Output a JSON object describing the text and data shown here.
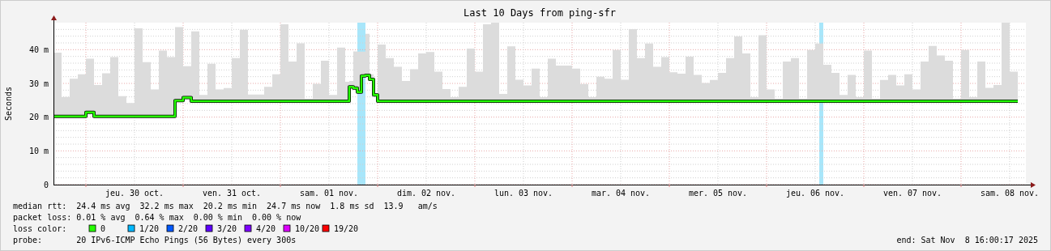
{
  "chart_data": {
    "type": "step",
    "title": "Last 10 Days from ping-sfr",
    "ylabel": "Seconds",
    "legend_title": "loss color:",
    "legend": "bottom left",
    "grid": true,
    "xlim": [
      "2025-10-29T16:00",
      "2025-11-08T16:00"
    ],
    "xticks": [
      {
        "value": "2025-10-30T00:00",
        "label": null
      },
      {
        "value": "2025-10-30T12:00",
        "label": "jeu. 30 oct."
      },
      {
        "value": "2025-10-31T00:00",
        "label": null
      },
      {
        "value": "2025-10-31T12:00",
        "label": "ven. 31 oct."
      },
      {
        "value": "2025-11-01T00:00",
        "label": null
      },
      {
        "value": "2025-11-01T12:00",
        "label": "sam. 01 nov."
      },
      {
        "value": "2025-11-02T00:00",
        "label": null
      },
      {
        "value": "2025-11-02T12:00",
        "label": "dim. 02 nov."
      },
      {
        "value": "2025-11-03T00:00",
        "label": null
      },
      {
        "value": "2025-11-03T12:00",
        "label": "lun. 03 nov."
      },
      {
        "value": "2025-11-04T00:00",
        "label": null
      },
      {
        "value": "2025-11-04T12:00",
        "label": "mar. 04 nov."
      },
      {
        "value": "2025-11-05T00:00",
        "label": null
      },
      {
        "value": "2025-11-05T12:00",
        "label": "mer. 05 nov."
      },
      {
        "value": "2025-11-06T00:00",
        "label": null
      },
      {
        "value": "2025-11-06T12:00",
        "label": "jeu. 06 nov."
      },
      {
        "value": "2025-11-07T00:00",
        "label": null
      },
      {
        "value": "2025-11-07T12:00",
        "label": "ven. 07 nov."
      },
      {
        "value": "2025-11-08T00:00",
        "label": null
      },
      {
        "value": "2025-11-08T12:00",
        "label": "sam. 08 nov."
      }
    ],
    "ylim": [
      0,
      48
    ],
    "yticks": [
      {
        "value": 0,
        "label": "0"
      },
      {
        "value": 2,
        "label": null
      },
      {
        "value": 4,
        "label": null
      },
      {
        "value": 6,
        "label": null
      },
      {
        "value": 8,
        "label": null
      },
      {
        "value": 10,
        "label": "10 m"
      },
      {
        "value": 12,
        "label": null
      },
      {
        "value": 14,
        "label": null
      },
      {
        "value": 16,
        "label": null
      },
      {
        "value": 18,
        "label": null
      },
      {
        "value": 20,
        "label": "20 m"
      },
      {
        "value": 22,
        "label": null
      },
      {
        "value": 24,
        "label": null
      },
      {
        "value": 26,
        "label": null
      },
      {
        "value": 28,
        "label": null
      },
      {
        "value": 30,
        "label": "30 m"
      },
      {
        "value": 32,
        "label": null
      },
      {
        "value": 34,
        "label": null
      },
      {
        "value": 36,
        "label": null
      },
      {
        "value": 38,
        "label": null
      },
      {
        "value": 40,
        "label": "40 m"
      },
      {
        "value": 42,
        "label": null
      },
      {
        "value": 44,
        "label": null
      },
      {
        "value": 46,
        "label": null
      }
    ],
    "bands": [
      {
        "axis": "x",
        "from": "2025-11-01T19:00",
        "to": "2025-11-01T21:00",
        "color": "#a8e6fa"
      },
      {
        "axis": "x",
        "from": "2025-11-06T13:00",
        "to": "2025-11-06T14:00",
        "color": "#a8e6fa"
      }
    ],
    "series": [
      {
        "name": "0",
        "color": "#26ff00",
        "x": [
          "2025-10-29T16:00",
          "2025-10-29T18:00",
          "2025-10-29T20:00",
          "2025-10-29T22:00",
          "2025-10-30T00:00",
          "2025-10-30T02:00",
          "2025-10-30T04:00",
          "2025-10-30T06:00",
          "2025-10-30T08:00",
          "2025-10-30T10:00",
          "2025-10-30T12:00",
          "2025-10-30T14:00",
          "2025-10-30T16:00",
          "2025-10-30T18:00",
          "2025-10-30T20:00",
          "2025-10-30T22:00",
          "2025-10-31T00:00",
          "2025-10-31T02:00",
          "2025-10-31T04:00",
          "2025-10-31T06:00",
          "2025-10-31T08:00",
          "2025-10-31T10:00",
          "2025-10-31T12:00",
          "2025-10-31T14:00",
          "2025-10-31T16:00",
          "2025-10-31T18:00",
          "2025-10-31T20:00",
          "2025-10-31T22:00",
          "2025-11-01T00:00",
          "2025-11-01T02:00",
          "2025-11-01T04:00",
          "2025-11-01T06:00",
          "2025-11-01T08:00",
          "2025-11-01T10:00",
          "2025-11-01T12:00",
          "2025-11-01T14:00",
          "2025-11-01T16:00",
          "2025-11-01T17:00",
          "2025-11-01T18:00",
          "2025-11-01T19:00",
          "2025-11-01T20:00",
          "2025-11-01T21:00",
          "2025-11-01T22:00",
          "2025-11-01T23:00",
          "2025-11-02T00:00",
          "2025-11-02T02:00",
          "2025-11-02T04:00",
          "2025-11-02T06:00",
          "2025-11-02T08:00",
          "2025-11-02T10:00",
          "2025-11-02T12:00",
          "2025-11-02T14:00",
          "2025-11-02T16:00",
          "2025-11-02T18:00",
          "2025-11-02T20:00",
          "2025-11-02T22:00",
          "2025-11-03T00:00",
          "2025-11-03T02:00",
          "2025-11-03T04:00",
          "2025-11-03T06:00",
          "2025-11-03T08:00",
          "2025-11-03T10:00",
          "2025-11-03T12:00",
          "2025-11-03T14:00",
          "2025-11-03T16:00",
          "2025-11-03T18:00",
          "2025-11-03T20:00",
          "2025-11-03T22:00",
          "2025-11-04T00:00",
          "2025-11-04T02:00",
          "2025-11-04T04:00",
          "2025-11-04T06:00",
          "2025-11-04T08:00",
          "2025-11-04T10:00",
          "2025-11-04T12:00",
          "2025-11-04T14:00",
          "2025-11-04T16:00",
          "2025-11-04T18:00",
          "2025-11-04T20:00",
          "2025-11-04T22:00",
          "2025-11-05T00:00",
          "2025-11-05T02:00",
          "2025-11-05T04:00",
          "2025-11-05T06:00",
          "2025-11-05T08:00",
          "2025-11-05T10:00",
          "2025-11-05T12:00",
          "2025-11-05T14:00",
          "2025-11-05T16:00",
          "2025-11-05T18:00",
          "2025-11-05T20:00",
          "2025-11-05T22:00",
          "2025-11-06T00:00",
          "2025-11-06T02:00",
          "2025-11-06T04:00",
          "2025-11-06T06:00",
          "2025-11-06T08:00",
          "2025-11-06T10:00",
          "2025-11-06T12:00",
          "2025-11-06T14:00",
          "2025-11-06T16:00",
          "2025-11-06T18:00",
          "2025-11-06T20:00",
          "2025-11-06T22:00",
          "2025-11-07T00:00",
          "2025-11-07T02:00",
          "2025-11-07T04:00",
          "2025-11-07T06:00",
          "2025-11-07T08:00",
          "2025-11-07T10:00",
          "2025-11-07T12:00",
          "2025-11-07T14:00",
          "2025-11-07T16:00",
          "2025-11-07T18:00",
          "2025-11-07T20:00",
          "2025-11-07T22:00",
          "2025-11-08T00:00",
          "2025-11-08T02:00",
          "2025-11-08T04:00",
          "2025-11-08T06:00",
          "2025-11-08T08:00",
          "2025-11-08T10:00",
          "2025-11-08T12:00",
          "2025-11-08T14:00"
        ],
        "values": [
          20.2,
          20.2,
          20.2,
          20.2,
          21.4,
          20.2,
          20.2,
          20.2,
          20.2,
          20.2,
          20.2,
          20.2,
          20.2,
          20.2,
          20.2,
          24.9,
          25.8,
          24.7,
          24.7,
          24.7,
          24.7,
          24.7,
          24.7,
          24.7,
          24.7,
          24.7,
          24.7,
          24.7,
          24.7,
          24.7,
          24.7,
          24.7,
          24.7,
          24.7,
          24.7,
          24.7,
          24.7,
          29.0,
          28.6,
          27.4,
          32.2,
          32.4,
          31.2,
          26.6,
          24.7,
          24.7,
          24.7,
          24.7,
          24.7,
          24.7,
          24.7,
          24.7,
          24.7,
          24.7,
          24.7,
          24.7,
          24.7,
          24.7,
          24.7,
          24.7,
          24.7,
          24.7,
          24.7,
          24.7,
          24.7,
          24.7,
          24.7,
          24.7,
          24.7,
          24.7,
          24.7,
          24.7,
          24.7,
          24.7,
          24.7,
          24.7,
          24.7,
          24.7,
          24.7,
          24.7,
          24.7,
          24.7,
          24.7,
          24.7,
          24.7,
          24.7,
          24.7,
          24.7,
          24.7,
          24.7,
          24.7,
          24.7,
          24.7,
          24.7,
          24.7,
          24.7,
          24.7,
          24.7,
          24.7,
          24.7,
          24.7,
          24.7,
          24.7,
          24.7,
          24.7,
          24.7,
          24.7,
          24.7,
          24.7,
          24.7,
          24.7,
          24.7,
          24.7,
          24.7,
          24.7,
          24.7,
          24.7,
          24.7,
          24.7,
          24.7,
          24.7,
          24.7,
          24.7,
          24.7
        ],
        "lower": [
          20.2,
          20.2,
          20.2,
          20.2,
          21.4,
          20.2,
          20.2,
          20.2,
          20.2,
          20.2,
          20.2,
          20.2,
          20.2,
          20.2,
          20.2,
          24.9,
          25.8,
          24.7,
          24.7,
          24.7,
          24.7,
          24.7,
          24.7,
          24.7,
          24.7,
          24.7,
          24.7,
          24.7,
          24.7,
          24.7,
          24.7,
          24.7,
          24.7,
          24.7,
          24.7,
          24.7,
          24.7,
          29.0,
          28.6,
          27.4,
          32.2,
          32.4,
          31.2,
          26.6,
          24.7,
          24.7,
          24.7,
          24.7,
          24.7,
          24.7,
          24.7,
          24.7,
          24.7,
          24.7,
          24.7,
          24.7,
          24.7,
          24.7,
          24.7,
          24.7,
          24.7,
          24.7,
          24.7,
          24.7,
          24.7,
          24.7,
          24.7,
          24.7,
          24.7,
          24.7,
          24.7,
          24.7,
          24.7,
          24.7,
          24.7,
          24.7,
          24.7,
          24.7,
          24.7,
          24.7,
          24.7,
          24.7,
          24.7,
          24.7,
          24.7,
          24.7,
          24.7,
          24.7,
          24.7,
          24.7,
          24.7,
          24.7,
          24.7,
          24.7,
          24.7,
          24.7,
          24.7,
          24.7,
          24.7,
          24.7,
          24.7,
          24.7,
          24.7,
          24.7,
          24.7,
          24.7,
          24.7,
          24.7,
          24.7,
          24.7,
          24.7,
          24.7,
          24.7,
          24.7,
          24.7,
          24.7,
          24.7,
          24.7,
          24.7,
          24.7,
          24.7,
          24.7,
          24.7,
          24.7
        ],
        "upper": [
          39.1,
          26.0,
          31.4,
          32.7,
          37.3,
          29.5,
          33.0,
          37.8,
          26.2,
          24.2,
          46.3,
          36.3,
          28.2,
          39.7,
          37.8,
          46.7,
          35.1,
          45.4,
          26.6,
          35.8,
          28.2,
          28.6,
          37.5,
          45.9,
          26.7,
          26.7,
          29.0,
          32.7,
          47.5,
          36.5,
          41.9,
          25.5,
          29.9,
          36.7,
          26.6,
          40.6,
          30.5,
          30.7,
          39.5,
          39.4,
          39.4,
          44.7,
          32.7,
          27.1,
          41.5,
          37.5,
          34.9,
          30.7,
          34.2,
          38.9,
          39.3,
          33.5,
          28.3,
          25.9,
          29.0,
          40.3,
          33.5,
          47.5,
          48.0,
          26.9,
          41.0,
          31.1,
          29.4,
          34.4,
          25.9,
          37.3,
          35.3,
          35.3,
          34.4,
          29.8,
          25.9,
          32.0,
          31.4,
          39.9,
          31.1,
          46.1,
          37.5,
          41.8,
          34.9,
          37.8,
          33.3,
          32.9,
          37.9,
          32.5,
          30.1,
          31.0,
          33.1,
          37.5,
          43.9,
          38.9,
          25.9,
          44.3,
          28.2,
          25.5,
          36.5,
          37.5,
          25.5,
          39.9,
          41.8,
          35.5,
          33.1,
          26.6,
          32.5,
          25.9,
          39.7,
          25.5,
          31.0,
          32.5,
          29.4,
          32.7,
          28.2,
          36.5,
          41.1,
          38.3,
          36.7,
          25.5,
          39.9,
          25.9,
          36.5,
          28.7,
          29.5,
          48.0,
          33.5,
          35.1
        ]
      },
      {
        "name": "1/20",
        "color": "#00b8ff"
      },
      {
        "name": "2/20",
        "color": "#0059ff"
      },
      {
        "name": "3/20",
        "color": "#5e00ff"
      },
      {
        "name": "4/20",
        "color": "#7e00ff"
      },
      {
        "name": "10/20",
        "color": "#dd00ff"
      },
      {
        "name": "19/20",
        "color": "#ff0000"
      }
    ],
    "annotations": [
      "median rtt:  24.4 ms avg  32.2 ms max  20.2 ms min  24.7 ms now  1.8 ms sd  13.9   am/s",
      "packet loss: 0.01 % avg  0.64 % max  0.00 % min  0.00 % now",
      "probe:       20 IPv6-ICMP Echo Pings (56 Bytes) every 300s",
      "end: Sat Nov  8 16:00:17 2025"
    ]
  }
}
